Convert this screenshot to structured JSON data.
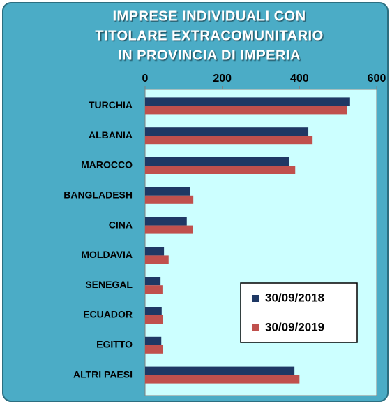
{
  "chart_data": {
    "type": "hbar",
    "title": [
      "IMPRESE INDIVIDUALI CON",
      "TITOLARE EXTRACOMUNITARIO",
      "IN PROVINCIA DI IMPERIA"
    ],
    "categories": [
      "TURCHIA",
      "ALBANIA",
      "MAROCCO",
      "BANGLADESH",
      "CINA",
      "MOLDAVIA",
      "SENEGAL",
      "ECUADOR",
      "EGITTO",
      "ALTRI PAESI"
    ],
    "series": [
      {
        "name": "30/09/2018",
        "color": "#1f3864",
        "values": [
          531,
          423,
          374,
          116,
          108,
          49,
          40,
          43,
          42,
          387
        ]
      },
      {
        "name": "30/09/2019",
        "color": "#c0504d",
        "values": [
          523,
          434,
          389,
          125,
          123,
          61,
          45,
          47,
          47,
          400
        ]
      }
    ],
    "xlim": [
      0,
      600
    ],
    "xticks": [
      0,
      200,
      400,
      600
    ],
    "legend": "bottom-right"
  }
}
